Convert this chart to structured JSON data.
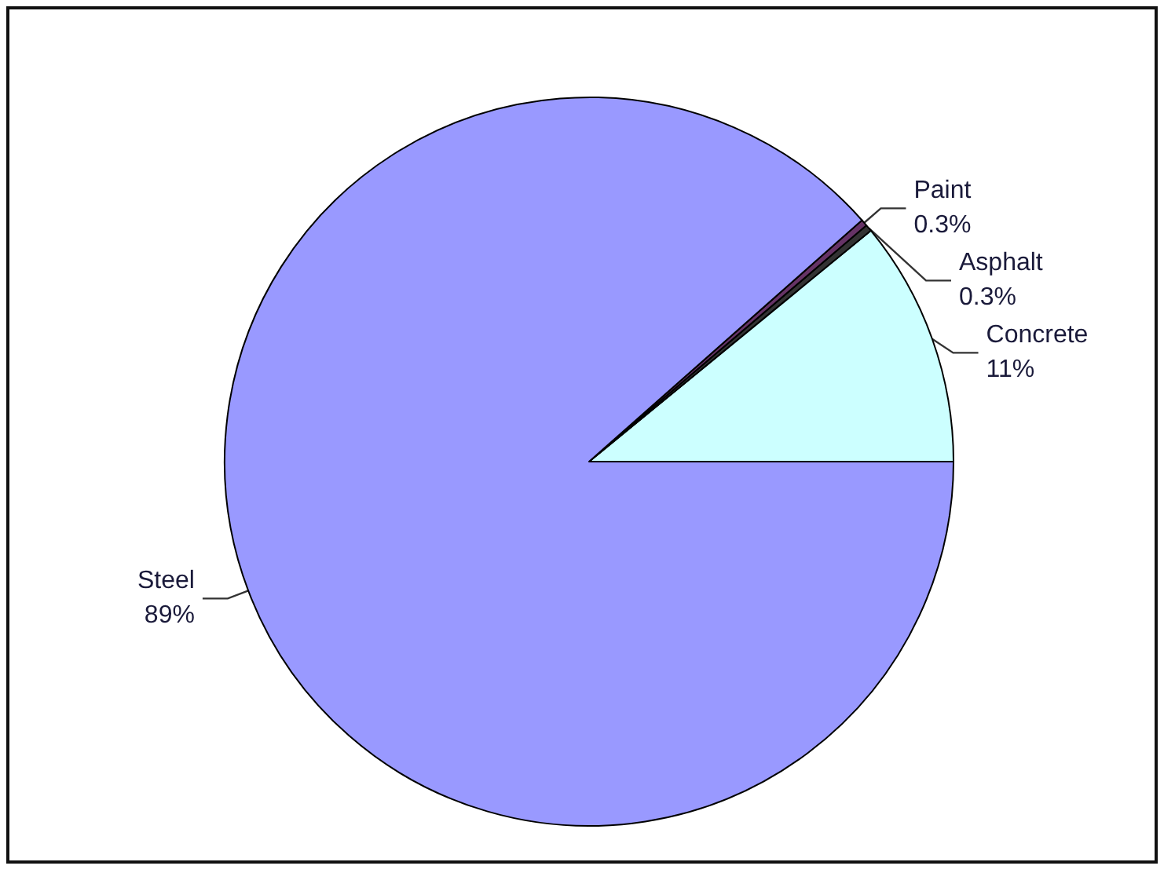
{
  "chart_data": {
    "type": "pie",
    "categories": [
      "Concrete",
      "Asphalt",
      "Paint",
      "Steel"
    ],
    "values": [
      11,
      0.3,
      0.3,
      89
    ],
    "colors": [
      "#ccffff",
      "#333333",
      "#663366",
      "#9999ff"
    ],
    "value_labels": [
      "11%",
      "0.3%",
      "0.3%",
      "89%"
    ]
  }
}
